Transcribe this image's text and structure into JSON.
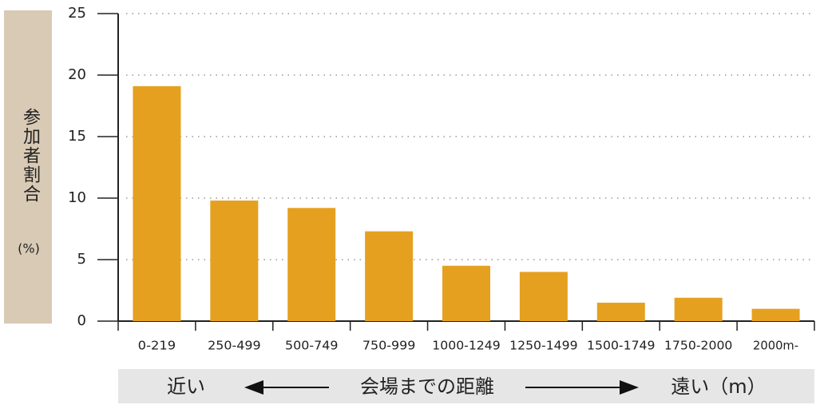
{
  "chart_data": {
    "type": "bar",
    "y_label": "参加者割合",
    "y_unit": "(%)",
    "x_label": "会場までの距離",
    "x_near": "近い",
    "x_far": "遠い（m）",
    "categories": [
      "0-219",
      "250-499",
      "500-749",
      "750-999",
      "1000-1249",
      "1250-1499",
      "1500-1749",
      "1750-2000",
      "2000m-"
    ],
    "values": [
      19.1,
      9.8,
      9.2,
      7.3,
      4.5,
      4.0,
      1.5,
      1.9,
      1.0
    ],
    "color": "#e6a020",
    "ylim": [
      0,
      25
    ],
    "yticks": [
      0,
      5,
      10,
      15,
      20,
      25
    ],
    "grid": true
  }
}
